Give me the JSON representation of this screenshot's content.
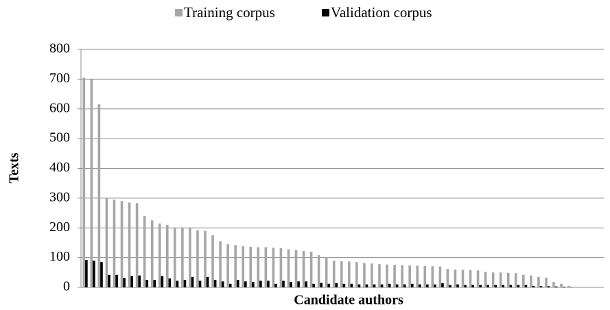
{
  "chart_data": {
    "type": "bar",
    "x_label": "Candidate authors",
    "y_label": "Texts",
    "categories": [
      null,
      null,
      null,
      null,
      null,
      null,
      null,
      null,
      null,
      null,
      null,
      null,
      null,
      null,
      null,
      null,
      null,
      null,
      null,
      null,
      null,
      null,
      null,
      null,
      null,
      null,
      null,
      null,
      null,
      null,
      null,
      null,
      null,
      null,
      null,
      null,
      null,
      null,
      null,
      null,
      null,
      null,
      null,
      null,
      null,
      null,
      null,
      null,
      null,
      null,
      null,
      null,
      null,
      null,
      null,
      null,
      null,
      null,
      null,
      null,
      null,
      null,
      null,
      null,
      null,
      null,
      null,
      null,
      null
    ],
    "series": [
      {
        "name": "Training corpus",
        "color": "#a6a6a6",
        "values": [
          705,
          700,
          615,
          300,
          295,
          290,
          285,
          283,
          240,
          225,
          215,
          210,
          200,
          200,
          200,
          192,
          190,
          175,
          155,
          145,
          142,
          138,
          136,
          135,
          135,
          133,
          132,
          128,
          125,
          122,
          120,
          108,
          100,
          90,
          88,
          87,
          85,
          82,
          80,
          78,
          77,
          76,
          75,
          74,
          73,
          72,
          71,
          70,
          62,
          60,
          59,
          58,
          57,
          52,
          50,
          50,
          49,
          48,
          42,
          40,
          35,
          33,
          18,
          12,
          5,
          0,
          0,
          0,
          0
        ]
      },
      {
        "name": "Validation corpus",
        "color": "#000000",
        "values": [
          92,
          90,
          85,
          42,
          42,
          32,
          38,
          40,
          25,
          25,
          38,
          30,
          22,
          25,
          35,
          22,
          35,
          25,
          20,
          12,
          25,
          20,
          18,
          22,
          22,
          12,
          22,
          18,
          20,
          20,
          12,
          15,
          12,
          14,
          12,
          12,
          10,
          10,
          10,
          10,
          12,
          10,
          10,
          12,
          10,
          10,
          10,
          14,
          8,
          10,
          8,
          8,
          8,
          8,
          8,
          8,
          8,
          8,
          8,
          5,
          4,
          4,
          3,
          2,
          1,
          0,
          0,
          0,
          0
        ]
      }
    ],
    "ylim": [
      0,
      800
    ],
    "yticks": [
      0,
      100,
      200,
      300,
      400,
      500,
      600,
      700,
      800
    ],
    "grid": true,
    "legend": "top"
  }
}
